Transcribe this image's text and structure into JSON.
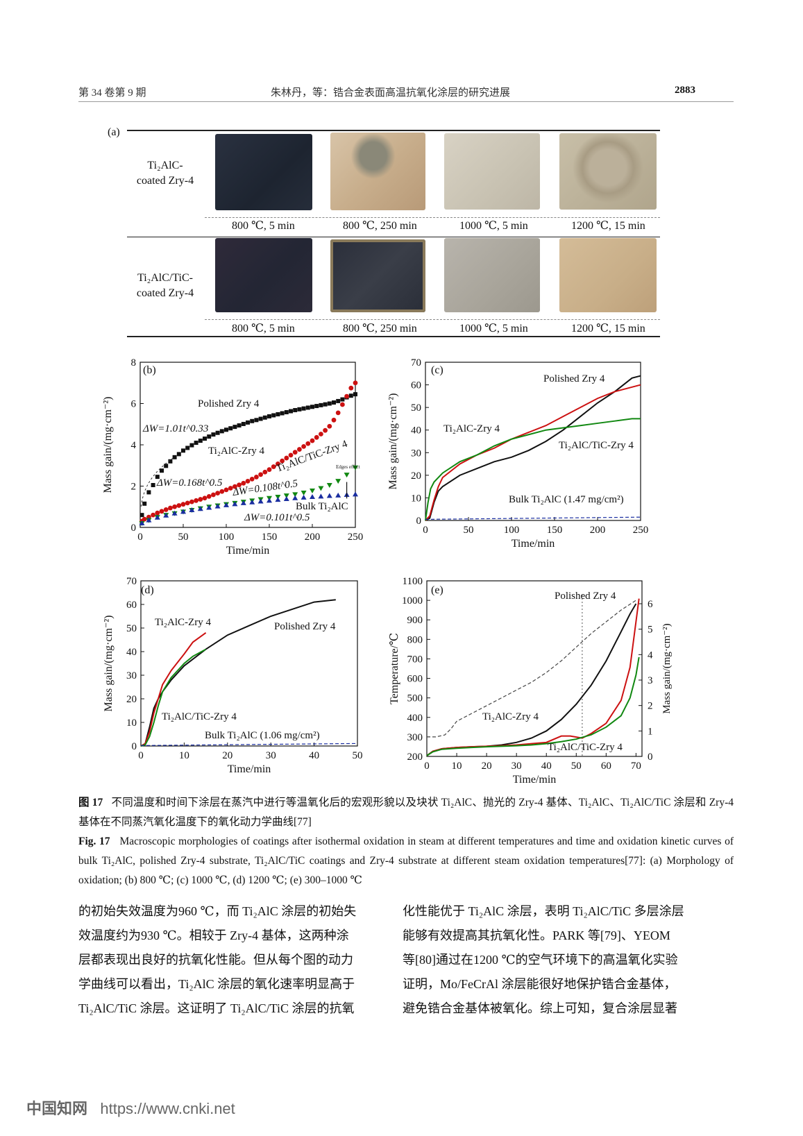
{
  "header": {
    "left": "第 34 卷第 9 期",
    "center": "朱林丹，等：锆合金表面高温抗氧化涂层的研究进展",
    "page": "2883"
  },
  "figure_a": {
    "panel": "(a)",
    "rows": [
      {
        "label_lines": [
          "Ti₂AlC-",
          "coated Zry-4"
        ],
        "conditions": [
          "800 ℃, 5 min",
          "800 ℃, 250 min",
          "1000 ℃, 5 min",
          "1200 ℃, 15 min"
        ]
      },
      {
        "label_lines": [
          "Ti₂AlC/TiC-",
          "coated Zry-4"
        ],
        "conditions": [
          "800 ℃, 5 min",
          "800 ℃, 250 min",
          "1000 ℃, 5 min",
          "1200 ℃, 15 min"
        ]
      }
    ]
  },
  "chart_data": [
    {
      "panel": "(b)",
      "type": "scatter",
      "xlabel": "Time/min",
      "ylabel": "Mass gain/(mg·cm⁻²)",
      "xlim": [
        0,
        250
      ],
      "ylim": [
        0,
        8
      ],
      "xticks": [
        "0",
        "50",
        "100",
        "150",
        "200",
        "250"
      ],
      "yticks": [
        "0",
        "2",
        "4",
        "6",
        "8"
      ],
      "series": [
        {
          "name": "Polished Zry 4",
          "color": "#111111",
          "marker": "square",
          "x": [
            2,
            5,
            10,
            15,
            20,
            25,
            30,
            35,
            40,
            45,
            50,
            55,
            60,
            65,
            70,
            75,
            80,
            85,
            90,
            95,
            100,
            105,
            110,
            115,
            120,
            125,
            130,
            135,
            140,
            145,
            150,
            155,
            160,
            165,
            170,
            175,
            180,
            185,
            190,
            195,
            200,
            205,
            210,
            215,
            220,
            225,
            230,
            235,
            240,
            245,
            250
          ],
          "y": [
            0.6,
            1.15,
            1.7,
            2.05,
            2.45,
            2.75,
            2.98,
            3.2,
            3.4,
            3.55,
            3.72,
            3.85,
            3.98,
            4.1,
            4.2,
            4.3,
            4.4,
            4.5,
            4.58,
            4.66,
            4.73,
            4.8,
            4.87,
            4.94,
            5.01,
            5.08,
            5.15,
            5.2,
            5.26,
            5.32,
            5.38,
            5.43,
            5.48,
            5.53,
            5.58,
            5.63,
            5.68,
            5.72,
            5.76,
            5.8,
            5.84,
            5.88,
            5.92,
            5.96,
            6.0,
            6.05,
            6.12,
            6.2,
            6.3,
            6.38,
            6.45
          ]
        },
        {
          "name": "Ti₂AlC-Zry 4",
          "color": "#cc1111",
          "marker": "circle",
          "x": [
            2,
            5,
            10,
            15,
            20,
            25,
            30,
            35,
            40,
            45,
            50,
            55,
            60,
            65,
            70,
            75,
            80,
            85,
            90,
            95,
            100,
            105,
            110,
            115,
            120,
            125,
            130,
            135,
            140,
            145,
            150,
            155,
            160,
            165,
            170,
            175,
            180,
            185,
            190,
            195,
            200,
            205,
            210,
            215,
            220,
            225,
            230,
            235,
            240,
            245,
            250
          ],
          "y": [
            0.3,
            0.4,
            0.5,
            0.6,
            0.7,
            0.78,
            0.86,
            0.94,
            1.0,
            1.06,
            1.12,
            1.18,
            1.24,
            1.3,
            1.36,
            1.42,
            1.5,
            1.58,
            1.66,
            1.74,
            1.82,
            1.9,
            1.98,
            2.06,
            2.14,
            2.24,
            2.34,
            2.44,
            2.56,
            2.68,
            2.8,
            2.94,
            3.08,
            3.22,
            3.36,
            3.5,
            3.64,
            3.78,
            3.92,
            4.06,
            4.2,
            4.36,
            4.52,
            4.7,
            4.9,
            5.2,
            5.55,
            5.95,
            6.35,
            6.75,
            7.0
          ]
        },
        {
          "name": "Ti₂AlC/TiC-Zry 4",
          "color": "#118811",
          "marker": "triangle-down",
          "x": [
            2,
            10,
            20,
            30,
            40,
            50,
            60,
            70,
            80,
            90,
            100,
            110,
            120,
            130,
            140,
            150,
            160,
            170,
            180,
            190,
            200,
            210,
            220,
            230,
            240,
            250
          ],
          "y": [
            0.2,
            0.35,
            0.5,
            0.6,
            0.68,
            0.76,
            0.84,
            0.92,
            1.0,
            1.06,
            1.12,
            1.18,
            1.24,
            1.3,
            1.36,
            1.42,
            1.48,
            1.54,
            1.6,
            1.68,
            1.78,
            1.9,
            2.05,
            2.25,
            2.55,
            2.9
          ]
        },
        {
          "name": "Bulk Ti₂AlC",
          "color": "#1a2ea0",
          "marker": "triangle-up",
          "x": [
            2,
            10,
            20,
            30,
            40,
            50,
            60,
            70,
            80,
            90,
            100,
            110,
            120,
            130,
            140,
            150,
            160,
            170,
            180,
            190,
            200,
            210,
            220,
            230,
            240,
            250
          ],
          "y": [
            0.2,
            0.35,
            0.48,
            0.58,
            0.68,
            0.76,
            0.84,
            0.9,
            0.96,
            1.02,
            1.08,
            1.13,
            1.18,
            1.22,
            1.26,
            1.3,
            1.34,
            1.38,
            1.42,
            1.45,
            1.48,
            1.5,
            1.53,
            1.55,
            1.58,
            1.6
          ]
        }
      ],
      "annotations": {
        "polished": "Polished Zry 4",
        "fit1": "ΔW=1.01t^0.33",
        "ti2alc": "Ti₂AlC-Zry 4",
        "fit2": "ΔW=0.168t^0.5",
        "ti2alctic": "Ti₂AlC/TiC-Zry 4",
        "fit3": "ΔW=0.108t^0.5",
        "edge": "Edges effect",
        "bulk": "Bulk Ti₂AlC",
        "fit4": "ΔW=0.101t^0.5"
      }
    },
    {
      "panel": "(c)",
      "type": "line",
      "xlabel": "Time/min",
      "ylabel": "Mass gain/(mg·cm⁻²)",
      "xlim": [
        0,
        250
      ],
      "ylim": [
        0,
        70
      ],
      "xticks": [
        "0",
        "50",
        "100",
        "150",
        "200",
        "250"
      ],
      "yticks": [
        "0",
        "10",
        "20",
        "30",
        "40",
        "50",
        "60",
        "70"
      ],
      "series": [
        {
          "name": "Polished Zry 4",
          "color": "#111111",
          "x": [
            0,
            5,
            10,
            15,
            20,
            40,
            60,
            80,
            100,
            120,
            140,
            160,
            180,
            200,
            220,
            240,
            250
          ],
          "y": [
            0,
            1,
            8,
            13,
            15,
            20,
            23,
            26,
            28,
            31,
            35,
            40,
            46,
            52,
            57,
            63,
            64
          ]
        },
        {
          "name": "Ti₂AlC-Zry 4",
          "color": "#cc1111",
          "x": [
            0,
            5,
            10,
            15,
            20,
            40,
            60,
            80,
            100,
            120,
            140,
            160,
            180,
            200,
            220,
            240,
            250
          ],
          "y": [
            0,
            2,
            9,
            15,
            19,
            25,
            29,
            32,
            36,
            39,
            42,
            46,
            50,
            54,
            57,
            59,
            60
          ]
        },
        {
          "name": "Ti₂AlC/TiC-Zry 4",
          "color": "#118811",
          "x": [
            0,
            3,
            6,
            10,
            15,
            20,
            40,
            60,
            80,
            100,
            120,
            140,
            160,
            180,
            200,
            220,
            240,
            250
          ],
          "y": [
            0,
            8,
            14,
            17,
            19,
            21,
            26,
            29,
            33,
            36,
            38,
            40,
            41,
            42,
            43,
            44,
            45,
            45
          ]
        },
        {
          "name": "Bulk Ti₂AlC (1.47 mg/cm²)",
          "color": "#1a2ea0",
          "dashed": true,
          "x": [
            0,
            250
          ],
          "y": [
            0.5,
            1.47
          ]
        }
      ],
      "annotations": {
        "polished": "Polished Zry 4",
        "ti2alc": "Ti₂AlC-Zry 4",
        "ti2alctic": "Ti₂AlC/TiC-Zry 4",
        "bulk": "Bulk Ti₂AlC (1.47 mg/cm²)"
      }
    },
    {
      "panel": "(d)",
      "type": "line",
      "xlabel": "Time/min",
      "ylabel": "Mass gain/(mg·cm⁻²)",
      "xlim": [
        0,
        50
      ],
      "ylim": [
        0,
        70
      ],
      "xticks": [
        "0",
        "10",
        "20",
        "30",
        "40",
        "50"
      ],
      "yticks": [
        "0",
        "10",
        "20",
        "30",
        "40",
        "50",
        "60",
        "70"
      ],
      "series": [
        {
          "name": "Polished Zry 4",
          "color": "#111111",
          "x": [
            0,
            1,
            2,
            3,
            4,
            5,
            7,
            10,
            15,
            20,
            25,
            30,
            35,
            40,
            45
          ],
          "y": [
            0,
            1,
            8,
            16,
            20,
            23,
            28,
            34,
            41,
            47,
            51,
            55,
            58,
            61,
            62
          ]
        },
        {
          "name": "Ti₂AlC-Zry 4",
          "color": "#cc1111",
          "x": [
            0,
            1,
            2,
            3,
            4,
            5,
            7,
            10,
            12,
            15
          ],
          "y": [
            0,
            1,
            6,
            14,
            20,
            26,
            32,
            39,
            44,
            48
          ]
        },
        {
          "name": "Ti₂AlC/TiC-Zry 4",
          "color": "#118811",
          "x": [
            0,
            1,
            2,
            3,
            4,
            5,
            7,
            10,
            12,
            15
          ],
          "y": [
            0,
            0.5,
            4,
            10,
            17,
            23,
            29,
            35,
            38,
            41
          ]
        },
        {
          "name": "Bulk Ti₂AlC (1.06 mg/cm²)",
          "color": "#1a2ea0",
          "dashed": true,
          "x": [
            0,
            50
          ],
          "y": [
            0.2,
            1.06
          ]
        }
      ],
      "annotations": {
        "polished": "Polished Zry 4",
        "ti2alc": "Ti₂AlC-Zry 4",
        "ti2alctic": "Ti₂AlC/TiC-Zry 4",
        "bulk": "Bulk Ti₂AlC (1.06 mg/cm²)"
      }
    },
    {
      "panel": "(e)",
      "type": "line",
      "xlabel": "Time/min",
      "ylabel": "Temperature/℃",
      "y2label": "Mass gain/(mg·cm⁻²)",
      "xlim": [
        0,
        72
      ],
      "ylim": [
        200,
        1100
      ],
      "y2lim": [
        0,
        6.9
      ],
      "xticks": [
        "0",
        "10",
        "20",
        "30",
        "40",
        "50",
        "60",
        "70"
      ],
      "yticks": [
        "200",
        "300",
        "400",
        "500",
        "600",
        "700",
        "800",
        "900",
        "1000",
        "1100"
      ],
      "y2ticks": [
        "0",
        "1",
        "2",
        "3",
        "4",
        "5",
        "6"
      ],
      "vline_x": 52,
      "temperature": {
        "color": "#444444",
        "dashed": true,
        "x": [
          0,
          3,
          6,
          8,
          10,
          15,
          20,
          25,
          30,
          35,
          40,
          45,
          50,
          55,
          60,
          65,
          70
        ],
        "y": [
          300,
          300,
          310,
          340,
          380,
          420,
          460,
          500,
          540,
          580,
          630,
          690,
          760,
          830,
          890,
          950,
          1000
        ]
      },
      "series": [
        {
          "name": "Polished Zry 4",
          "color": "#111111",
          "axis": "right",
          "x": [
            0,
            2,
            5,
            10,
            15,
            20,
            25,
            30,
            35,
            40,
            45,
            50,
            55,
            60,
            65,
            68,
            70
          ],
          "y": [
            0.03,
            0.2,
            0.3,
            0.35,
            0.38,
            0.4,
            0.45,
            0.55,
            0.72,
            1.0,
            1.45,
            2.05,
            2.8,
            3.75,
            4.9,
            5.6,
            6.0
          ]
        },
        {
          "name": "Ti₂AlC-Zry 4",
          "color": "#cc1111",
          "axis": "right",
          "x": [
            0,
            2,
            5,
            10,
            15,
            20,
            25,
            30,
            35,
            40,
            45,
            48,
            52,
            55,
            60,
            65,
            68,
            70,
            71
          ],
          "y": [
            0.03,
            0.2,
            0.3,
            0.35,
            0.38,
            0.4,
            0.42,
            0.45,
            0.5,
            0.55,
            0.8,
            0.8,
            0.72,
            0.9,
            1.3,
            2.2,
            3.5,
            5.3,
            6.2
          ]
        },
        {
          "name": "Ti₂AlC/TiC-Zry 4",
          "color": "#118811",
          "axis": "right",
          "x": [
            0,
            2,
            5,
            10,
            15,
            20,
            25,
            30,
            35,
            40,
            45,
            50,
            55,
            60,
            65,
            68,
            70,
            71
          ],
          "y": [
            0.03,
            0.18,
            0.28,
            0.32,
            0.35,
            0.38,
            0.4,
            0.42,
            0.45,
            0.5,
            0.58,
            0.68,
            0.85,
            1.15,
            1.6,
            2.3,
            3.2,
            3.9
          ]
        }
      ],
      "annotations": {
        "polished": "Polished Zry 4",
        "ti2alc": "Ti₂AlC-Zry 4",
        "ti2alctic": "Ti₂AlC/TiC-Zry 4"
      }
    }
  ],
  "caption": {
    "cn_label": "图 17",
    "cn_text": "不同温度和时间下涂层在蒸汽中进行等温氧化后的宏观形貌以及块状 Ti₂AlC、抛光的 Zry-4 基体、Ti₂AlC、Ti₂AlC/TiC 涂层和 Zry-4 基体在不同蒸汽氧化温度下的氧化动力学曲线[77]",
    "en_label": "Fig. 17",
    "en_text": "Macroscopic morphologies of coatings after isothermal oxidation in steam at different temperatures and time and oxidation kinetic curves of bulk Ti₂AlC, polished Zry-4 substrate, Ti₂AlC/TiC coatings and Zry-4 substrate at different steam oxidation temperatures[77]: (a) Morphology of oxidation; (b) 800 ℃; (c) 1000 ℃, (d) 1200 ℃; (e) 300–1000 ℃"
  },
  "body": {
    "left": [
      "的初始失效温度为960 ℃，而 Ti₂AlC 涂层的初始失",
      "效温度约为930 ℃。相较于 Zry-4 基体，这两种涂",
      "层都表现出良好的抗氧化性能。但从每个图的动力",
      "学曲线可以看出，Ti₂AlC 涂层的氧化速率明显高于",
      "Ti₂AlC/TiC 涂层。这证明了 Ti₂AlC/TiC 涂层的抗氧"
    ],
    "right": [
      "化性能优于 Ti₂AlC 涂层，表明 Ti₂AlC/TiC 多层涂层",
      "能够有效提高其抗氧化性。PARK 等[79]、YEOM",
      "等[80]通过在1200 ℃的空气环境下的高温氧化实验",
      "证明，Mo/FeCrAl 涂层能很好地保护锆合金基体，",
      "避免锆合金基体被氧化。综上可知，复合涂层显著"
    ]
  },
  "watermark": {
    "logo": "中国知网",
    "url": "https://www.cnki.net"
  },
  "colors": {
    "black": "#111111",
    "red": "#cc1111",
    "green": "#118811",
    "blue": "#1a2ea0"
  }
}
